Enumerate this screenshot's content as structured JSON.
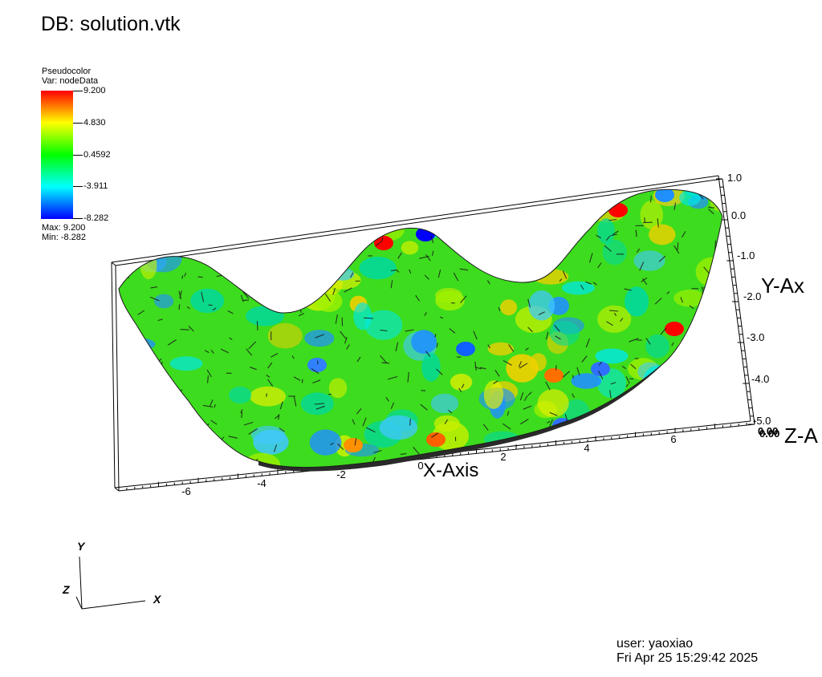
{
  "db_title": "DB: solution.vtk",
  "legend": {
    "plot_type": "Pseudocolor",
    "var_label": "Var: nodeData",
    "ticks": [
      "9.200",
      "4.830",
      "0.4592",
      "-3.911",
      "-8.282"
    ],
    "max_label": "Max:  9.200",
    "min_label": "Min: -8.282",
    "colors": [
      "#ff0000",
      "#ffff00",
      "#00ff00",
      "#00ffff",
      "#0000ff"
    ]
  },
  "axes": {
    "x_title": "X-Axis",
    "y_title": "Y-Ax",
    "z_title": "Z-A",
    "x_ticks": [
      {
        "value": -6,
        "label": "-6"
      },
      {
        "value": -4,
        "label": "-4"
      },
      {
        "value": -2,
        "label": "-2"
      },
      {
        "value": 0,
        "label": "0"
      },
      {
        "value": 2,
        "label": "2"
      },
      {
        "value": 4,
        "label": "4"
      },
      {
        "value": 6,
        "label": "6"
      }
    ],
    "y_ticks": [
      {
        "value": 1.0,
        "label": "1.0"
      },
      {
        "value": 0.0,
        "label": "0.0"
      },
      {
        "value": -1.0,
        "label": "-1.0"
      },
      {
        "value": -2.0,
        "label": "-2.0"
      },
      {
        "value": -3.0,
        "label": "-3.0"
      },
      {
        "value": -4.0,
        "label": "-4.0"
      },
      {
        "value": -5.0,
        "label": "-5.0"
      }
    ],
    "z_tick_labels": [
      "0.00",
      "0.00"
    ]
  },
  "triad": {
    "x": "X",
    "y": "Y",
    "z": "Z"
  },
  "footer": {
    "user": "user: yaoxiao",
    "date": "Fri Apr 25 15:29:42 2025"
  }
}
